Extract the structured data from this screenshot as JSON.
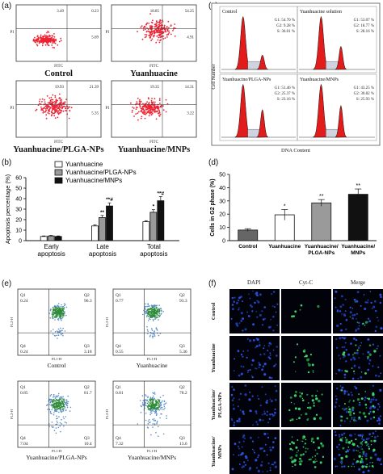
{
  "panels": {
    "a": {
      "letter": "(a)",
      "plots": [
        {
          "caption": "Control",
          "q": [
            "3.49",
            "0.23",
            "5.69"
          ]
        },
        {
          "caption": "Yuanhuacine",
          "q": [
            "18.85",
            "54.25",
            "4.91"
          ]
        },
        {
          "caption": "Yuanhuacine/PLGA-NPs",
          "q": [
            "19.93",
            "21.39",
            "5.35"
          ]
        },
        {
          "caption": "Yuanhuacine/MNPs",
          "q": [
            "19.35",
            "14.31",
            "3.22"
          ]
        }
      ],
      "xlabel": "FITC",
      "ylabel": "PI"
    },
    "b": {
      "letter": "(b)",
      "chart_data": {
        "type": "bar",
        "categories": [
          "Early apoptosis",
          "Late apoptosis",
          "Total apoptosis"
        ],
        "category_lines": [
          [
            "Early",
            "apoptosis"
          ],
          [
            "Late",
            "apoptosis"
          ],
          [
            "Total",
            "apoptosis"
          ]
        ],
        "series": [
          {
            "name": "Yuanhuacine",
            "values": [
              4,
              14,
              18
            ],
            "errors": [
              0.5,
              1,
              1
            ],
            "color": "#ffffff",
            "sig": [
              "",
              "",
              ""
            ]
          },
          {
            "name": "Yuanhuacine/PLGA-NPs",
            "values": [
              4.5,
              22,
              27
            ],
            "errors": [
              0.5,
              2,
              2.5
            ],
            "color": "#9a9a9a",
            "sig": [
              "",
              "**",
              "*"
            ]
          },
          {
            "name": "Yuanhuacine/MNPs",
            "values": [
              4,
              33,
              38
            ],
            "errors": [
              0.5,
              3,
              4
            ],
            "color": "#111111",
            "sig": [
              "",
              "**#",
              "**#"
            ]
          }
        ],
        "ylabel": "Apoptosis percentage (%)",
        "ylim": [
          0,
          60
        ],
        "yticks": [
          "0",
          "10",
          "20",
          "30",
          "40",
          "50",
          "60"
        ]
      }
    },
    "c": {
      "letter": "(c)",
      "ylabel": "Cell Number",
      "xlabel": "DNA Content",
      "plots": [
        {
          "title": "Control",
          "stats": [
            "G1: 54.70 %",
            "G2: 9.28 %",
            "S: 36.01 %"
          ]
        },
        {
          "title": "Yuanhuacine solution",
          "stats": [
            "G1: 53.07 %",
            "G2: 18.77 %",
            "S: 28.16 %"
          ]
        },
        {
          "title": "Yuanhuacine/PLGA-NPs",
          "stats": [
            "G1: 51.46 %",
            "G2: 25.37 %",
            "S: 23.16 %"
          ]
        },
        {
          "title": "Yuanhuacine/MNPs",
          "stats": [
            "G1: 43.25 %",
            "G2: 30.82 %",
            "S: 25.93 %"
          ]
        }
      ]
    },
    "d": {
      "letter": "(d)",
      "chart_data": {
        "type": "bar",
        "categories": [
          "Control",
          "Yuanhuacine",
          "Yuanhuacine/ PLGA-NPs",
          "Yuanhuacine/ MNPs"
        ],
        "category_lines": [
          [
            "Control"
          ],
          [
            "Yuanhuacine"
          ],
          [
            "Yuanhuacine/",
            "PLGA-NPs"
          ],
          [
            "Yuanhuacine/",
            "MNPs"
          ]
        ],
        "values": [
          8,
          19.5,
          28.5,
          35
        ],
        "errors": [
          1,
          4,
          2.5,
          4
        ],
        "colors": [
          "#666666",
          "#ffffff",
          "#9a9a9a",
          "#111111"
        ],
        "sig": [
          "",
          "*",
          "**",
          "**"
        ],
        "ylabel": "Cells in G2 phase (%)",
        "ylim": [
          0,
          50
        ],
        "yticks": [
          "0",
          "10",
          "20",
          "30",
          "40",
          "50"
        ]
      }
    },
    "e": {
      "letter": "(e)",
      "plots": [
        {
          "caption": "Control",
          "q": [
            "0.24",
            "96.3",
            "0.24",
            "3.18"
          ]
        },
        {
          "caption": "Yuanhuacine",
          "q": [
            "0.77",
            "93.3",
            "0.55",
            "5.36"
          ]
        },
        {
          "caption": "Yuanhuacine/PLGA-NPs",
          "q": [
            "0.85",
            "81.7",
            "7.04",
            "10.4"
          ]
        },
        {
          "caption": "Yuanhuacine/MNPs",
          "q": [
            "0.81",
            "78.2",
            "7.32",
            "13.6"
          ]
        }
      ],
      "qnames": [
        "Q1",
        "Q2",
        "Q4",
        "Q3"
      ],
      "xlabel": "FL1-H",
      "ylabel": "FL2-H"
    },
    "f": {
      "letter": "(f)",
      "columns": [
        "DAPI",
        "Cyt-C",
        "Merge"
      ],
      "rows": [
        "Control",
        "Yuanhuacine",
        "Yuanhuacine/ PLGA-NPs",
        "Yuanhuacine/ MNPs"
      ],
      "row_lines": [
        [
          "Control"
        ],
        [
          "Yuanhuacine"
        ],
        [
          "Yuanhuacine/",
          "PLGA-NPs"
        ],
        [
          "Yuanhuacine/",
          "MNPs"
        ]
      ]
    }
  }
}
